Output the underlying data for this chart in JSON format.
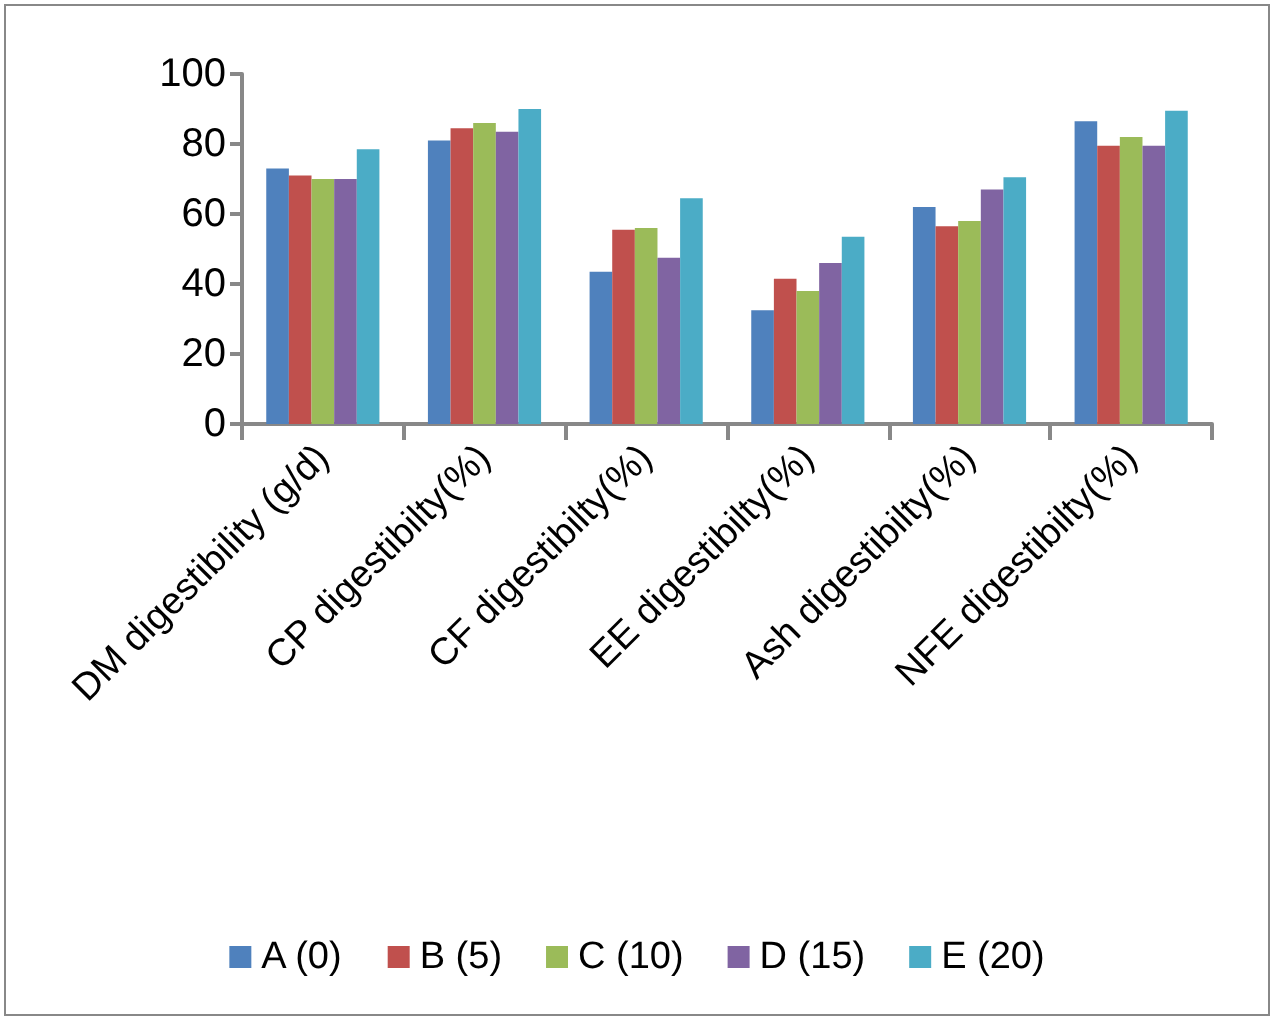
{
  "chart_data": {
    "type": "bar",
    "categories": [
      "DM digestibility (g/d)",
      "CP digestibilty(%)",
      "CF digestibilty(%)",
      "EE digestibilty(%)",
      "Ash digestibilty(%)",
      "NFE digestibilty(%)"
    ],
    "series": [
      {
        "name": "A (0)",
        "color": "#4f81bd",
        "values": [
          73,
          81,
          43.5,
          32.5,
          62,
          86.5
        ]
      },
      {
        "name": "B (5)",
        "color": "#c0504d",
        "values": [
          71,
          84.5,
          55.5,
          41.5,
          56.5,
          79.5
        ]
      },
      {
        "name": "C (10)",
        "color": "#9bbb59",
        "values": [
          70,
          86,
          56,
          38,
          58,
          82
        ]
      },
      {
        "name": "D (15)",
        "color": "#8064a2",
        "values": [
          70,
          83.5,
          47.5,
          46,
          67,
          79.5
        ]
      },
      {
        "name": "E (20)",
        "color": "#4bacc6",
        "values": [
          78.5,
          90,
          64.5,
          53.5,
          70.5,
          89.5
        ]
      }
    ],
    "ylim": [
      0,
      100
    ],
    "yticks": [
      0,
      20,
      40,
      60,
      80,
      100
    ],
    "grid": false,
    "legend": "bottom"
  }
}
